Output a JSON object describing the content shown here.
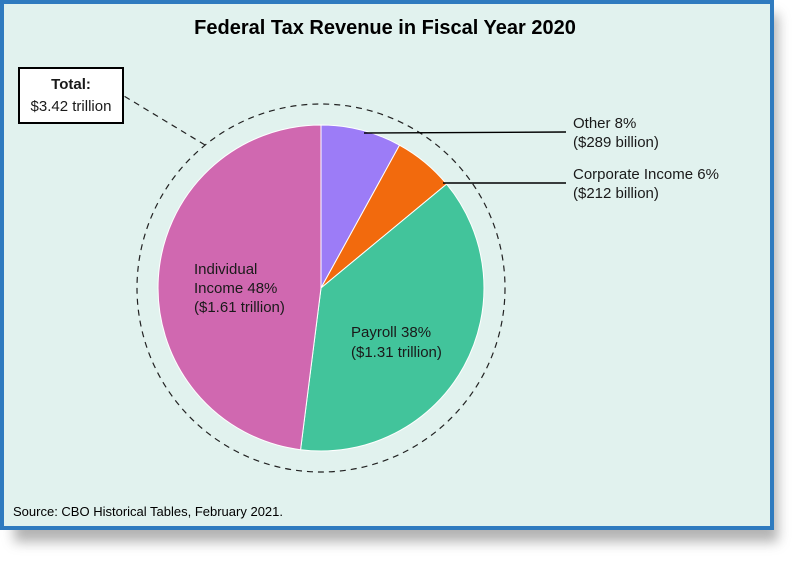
{
  "chart_data": {
    "type": "pie",
    "title": "Federal Tax Revenue in Fiscal Year 2020",
    "total_label": "Total:",
    "total_value": "$3.42 trillion",
    "source": "Source: CBO Historical Tables, February 2021.",
    "slices": [
      {
        "name": "Other",
        "percent": 8,
        "amount": "$289 billion",
        "line1": "Other 8%",
        "line2": "($289 billion)",
        "color": "#9c7cf7"
      },
      {
        "name": "Corporate Income",
        "percent": 6,
        "amount": "$212 billion",
        "line1": "Corporate Income 6%",
        "line2": "($212 billion)",
        "color": "#f26a0d"
      },
      {
        "name": "Payroll",
        "percent": 38,
        "amount": "$1.31 trillion",
        "line1": "Payroll 38%",
        "line2": "($1.31 trillion)",
        "color": "#42c49b"
      },
      {
        "name": "Individual Income",
        "percent": 48,
        "amount": "$1.61 trillion",
        "line1": "Individual",
        "line2": "Income 48%",
        "line3": "($1.61 trillion)",
        "color": "#d068b0"
      }
    ]
  }
}
